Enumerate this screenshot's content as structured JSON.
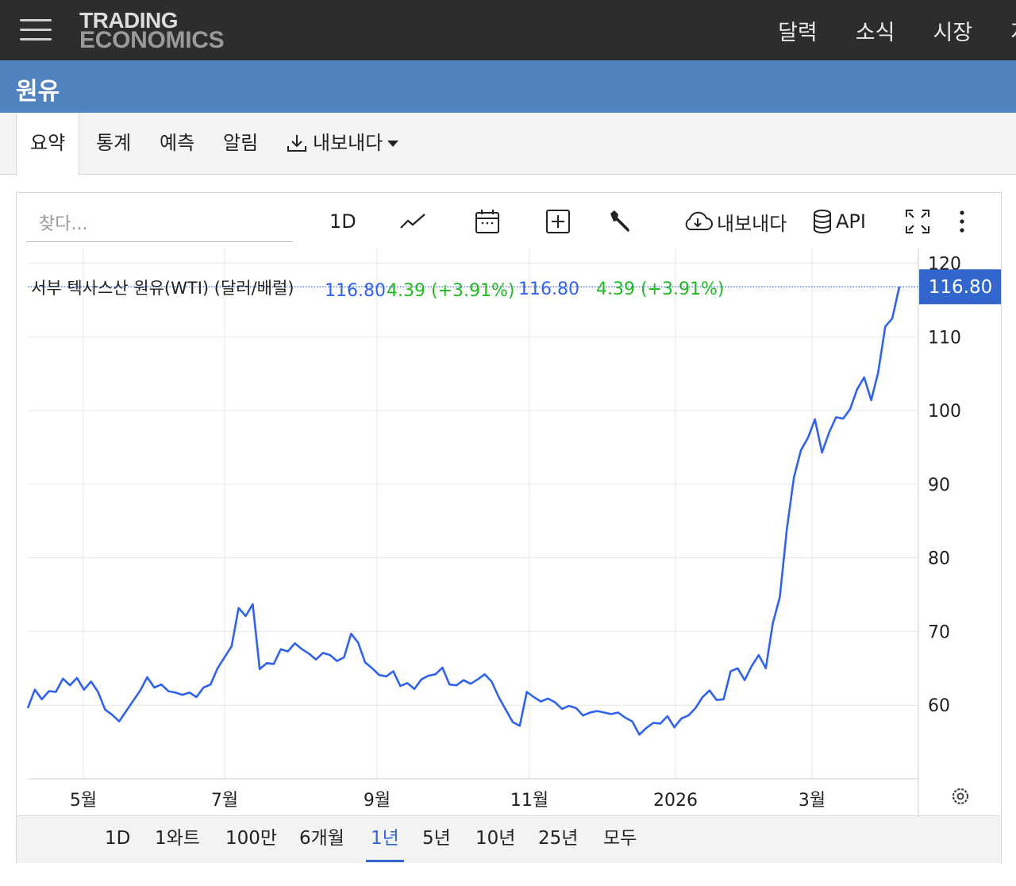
{
  "topbar": {
    "logo_line1": "TRADING",
    "logo_line2": "ECONOMICS",
    "nav": [
      "달력",
      "소식",
      "시장",
      "지"
    ]
  },
  "page_title": "원유",
  "tabs": {
    "summary": "요약",
    "stats": "통계",
    "forecast": "예측",
    "alerts": "알림",
    "export": "내보내다"
  },
  "toolbar": {
    "search_placeholder": "찾다...",
    "interval": "1D",
    "export": "내보내다",
    "api": "API"
  },
  "legend": {
    "series_label": "서부 텍사스산 원유(WTI) (달러/배럴)",
    "value_a": "116.80",
    "change_a": "4.39 (+3.91%)",
    "value_b": "116.80",
    "change_b": "4.39 (+3.91%)"
  },
  "ranges": [
    "1D",
    "1와트",
    "100만",
    "6개월",
    "1년",
    "5년",
    "10년",
    "25년",
    "모두"
  ],
  "active_range": "1년",
  "colors": {
    "line": "#2f62f0",
    "accent": "#3366cc",
    "up": "#22b822",
    "title_bar": "#5083bf",
    "nav_bg": "#2d2d2d"
  },
  "chart_data": {
    "type": "line",
    "series": [
      {
        "name": "서부 텍사스산 원유(WTI) (달러/배럴)",
        "values": [
          59.6,
          62.1,
          60.8,
          61.9,
          61.8,
          63.6,
          62.7,
          63.7,
          62.1,
          63.2,
          61.8,
          59.4,
          58.7,
          57.8,
          59.2,
          60.6,
          62.0,
          63.8,
          62.4,
          62.8,
          61.9,
          61.7,
          61.4,
          61.7,
          61.1,
          62.4,
          62.8,
          65.0,
          66.5,
          68.0,
          73.2,
          72.1,
          73.7,
          64.9,
          65.7,
          65.6,
          67.6,
          67.3,
          68.4,
          67.6,
          67.0,
          66.2,
          67.1,
          66.8,
          66.0,
          66.5,
          69.7,
          68.5,
          65.8,
          65.0,
          64.1,
          63.9,
          64.6,
          62.6,
          63.0,
          62.2,
          63.5,
          64.0,
          64.2,
          65.1,
          62.8,
          62.7,
          63.4,
          62.9,
          63.5,
          64.2,
          63.2,
          61.1,
          59.4,
          57.7,
          57.2,
          61.8,
          61.1,
          60.5,
          60.9,
          60.4,
          59.5,
          59.9,
          59.6,
          58.6,
          59.0,
          59.2,
          59.0,
          58.8,
          59.0,
          58.3,
          57.8,
          56.0,
          56.9,
          57.6,
          57.5,
          58.5,
          57.0,
          58.2,
          58.6,
          59.6,
          61.1,
          62.0,
          60.7,
          60.8,
          64.6,
          65.0,
          63.4,
          65.3,
          66.8,
          65.0,
          71.1,
          74.7,
          83.9,
          90.9,
          94.6,
          96.3,
          98.8,
          94.3,
          97.0,
          99.1,
          98.9,
          100.2,
          102.9,
          104.5,
          101.4,
          105.2,
          111.4,
          112.5,
          116.8
        ]
      }
    ],
    "x_ticks": [
      "5월",
      "7월",
      "9월",
      "11월",
      "2026",
      "3월"
    ],
    "y_ticks": [
      60,
      70,
      80,
      90,
      100,
      110,
      120
    ],
    "ylim": [
      50,
      122
    ],
    "last_value": 116.8,
    "last_label": "116.80",
    "grid": true
  }
}
